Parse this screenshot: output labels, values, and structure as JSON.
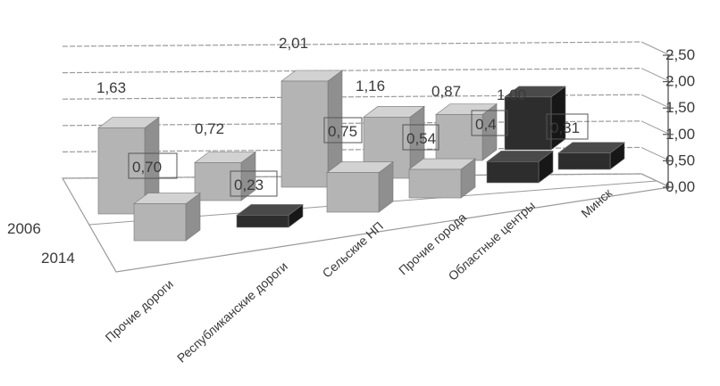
{
  "chart_data": {
    "type": "bar",
    "categories": [
      "Прочие дороги",
      "Республиканские дороги",
      "Сельские НП",
      "Прочие города",
      "Областные центры",
      "Минск"
    ],
    "series": [
      {
        "name": "2006",
        "values": [
          1.63,
          0.72,
          2.01,
          1.16,
          0.87,
          1.0
        ]
      },
      {
        "name": "2014",
        "values": [
          0.7,
          0.23,
          0.75,
          0.54,
          0.4,
          0.31
        ]
      }
    ],
    "value_labels_2006": [
      "1,63",
      "0,72",
      "2,01",
      "1,16",
      "0,87",
      "1,00"
    ],
    "value_labels_2014": [
      "0,70",
      "0,23",
      "0,75",
      "0,54",
      "0,4",
      "0,31"
    ],
    "yticks": [
      "0,00",
      "0,50",
      "1,00",
      "1,50",
      "2,00",
      "2,50"
    ],
    "ylim": [
      0,
      2.5
    ],
    "grid": true,
    "projection": "3d-column",
    "colors": {
      "gray_bar": "#b4b4b4",
      "gray_bar_side": "#8f8f8f",
      "gray_bar_top": "#d2d2d2",
      "dark_bar": "#2d2d2d",
      "dark_bar_side": "#171717",
      "dark_bar_top": "#4a4a4a",
      "grid": "#9a9a9a",
      "text": "#3a3a3a"
    }
  }
}
